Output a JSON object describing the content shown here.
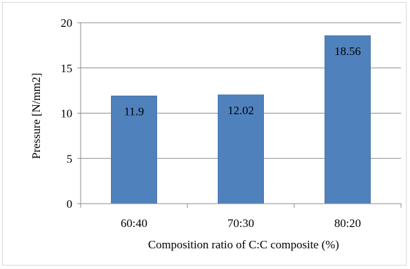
{
  "chart_data": {
    "type": "bar",
    "categories": [
      "60:40",
      "70:30",
      "80:20"
    ],
    "values": [
      11.9,
      12.02,
      18.56
    ],
    "data_labels": [
      "11.9",
      "12.02",
      "18.56"
    ],
    "title": "",
    "xlabel": "Composition ratio of C:C composite (%)",
    "ylabel": "Pressure [N/mm2]",
    "ylim": [
      0,
      20
    ],
    "yticks": [
      0,
      5,
      10,
      15,
      20
    ],
    "ytick_labels": [
      "0",
      "5",
      "10",
      "15",
      "20"
    ],
    "grid": true,
    "legend": "none",
    "colors": {
      "bar": "#4f81bd",
      "bar_edge": "#4774a9",
      "grid": "#8c8c8c",
      "axis": "#8c8c8c"
    }
  }
}
